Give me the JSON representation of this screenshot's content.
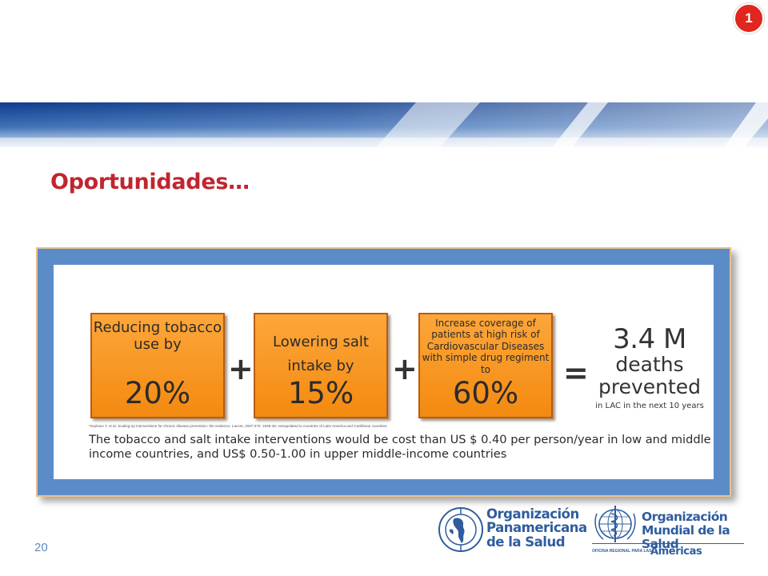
{
  "slide": {
    "badge": "1",
    "title": "Oportunidades…",
    "page_number": "20"
  },
  "infographic": {
    "boxes": [
      {
        "label": "Reducing tobacco use by",
        "percent": "20%"
      },
      {
        "label": "Lowering salt intake by",
        "percent": "15%"
      },
      {
        "label": "Increase coverage of patients at high risk of Cardiovascular Diseases with simple drug regiment to",
        "percent": "60%"
      }
    ],
    "operators": {
      "plus": "+",
      "equals": "="
    },
    "result": {
      "value": "3.4 M",
      "line1": "deaths",
      "line2": "prevented",
      "note": "in LAC in the next 10 years"
    },
    "footnote": "*Gaziano T, et al. Scaling-up interventions for chronic disease prevention: the evidence. Lancet, 2007;370: 1939-46; extrapolated to countries of Latin America and Caribbean countries.",
    "summary": "The tobacco and salt intake interventions would be cost than US $ 0.40 per person/year in low and middle income countries, and US$ 0.50-1.00 in upper middle-income countries"
  },
  "logos": {
    "paho": {
      "seal_icon": "paho-seal-icon",
      "name_line1": "Organización",
      "name_line2": "Panamericana",
      "name_line3": "de la Salud"
    },
    "who": {
      "emblem_icon": "who-emblem-icon",
      "name_line1": "Organización",
      "name_line2": "Mundial de la Salud",
      "subtitle": "OFICINA REGIONAL PARA LAS",
      "region": "Américas"
    }
  },
  "colors": {
    "title": "#c0262f",
    "frame_blue": "#5b8cc8",
    "box_orange": "#f7941d",
    "logo_blue": "#2f5d9e",
    "badge_red": "#e0261f"
  }
}
